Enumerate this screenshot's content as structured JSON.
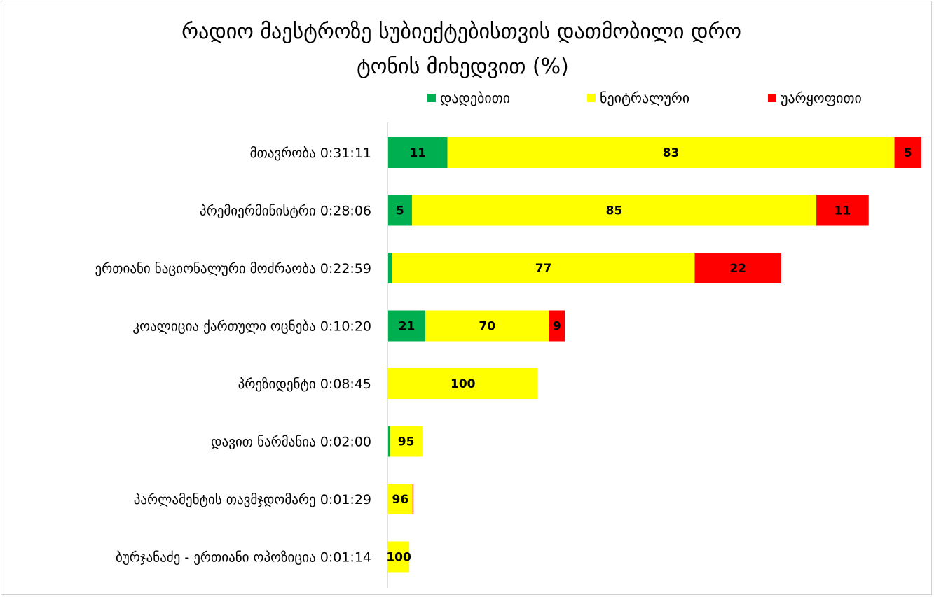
{
  "chart_data": {
    "type": "bar",
    "orientation": "horizontal",
    "stacked": true,
    "title_line1": "რადიო მაესტროზე სუბიექტებისთვის დათმობილი დრო",
    "title_line2": "ტონის მიხედვით (%)",
    "legend_position": "top-right",
    "categories": [
      "მთავრობა 0:31:11",
      "პრემიერმინისტრი 0:28:06",
      "ერთიანი ნაციონალური მოძრაობა 0:22:59",
      "კოალიცია ქართული ოცნება 0:10:20",
      "პრეზიდენტი 0:08:45",
      "დავით ნარმანია 0:02:00",
      "პარლამენტის თავმჯდომარე 0:01:29",
      "ბურჯანაძე - ერთიანი ოპოზიცია 0:01:14"
    ],
    "durations_seconds": [
      1871,
      1686,
      1379,
      620,
      525,
      120,
      89,
      74
    ],
    "series": [
      {
        "name": "დადებითი",
        "color": "#00b050",
        "values": [
          11,
          5,
          1,
          21,
          0,
          5,
          0,
          0
        ],
        "labels": [
          "11",
          "5",
          "",
          "21",
          "",
          "",
          "",
          ""
        ]
      },
      {
        "name": "ნეიტრალური",
        "color": "#ffff00",
        "values": [
          83,
          85,
          77,
          70,
          100,
          95,
          96,
          100
        ],
        "labels": [
          "83",
          "85",
          "77",
          "70",
          "100",
          "95",
          "96",
          "100"
        ]
      },
      {
        "name": "უარყოფითი",
        "color": "#ff0000",
        "values": [
          5,
          11,
          22,
          9,
          0,
          0,
          4,
          0
        ],
        "labels": [
          "5",
          "11",
          "22",
          "9",
          "",
          "",
          "",
          ""
        ]
      }
    ]
  }
}
